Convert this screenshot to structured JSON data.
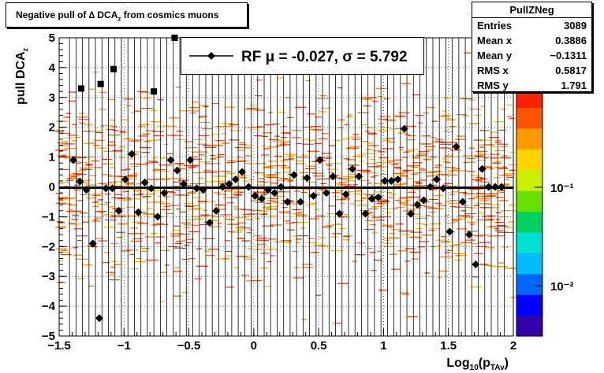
{
  "title": {
    "main": "Negative pull of ",
    "symbol": "∆",
    "rest1": " DCA",
    "sub": "z",
    "rest2": " from cosmics muons"
  },
  "stats": {
    "name": "PullZNeg",
    "rows": [
      {
        "label": "Entries",
        "value": "3089"
      },
      {
        "label": "Mean x",
        "value": "0.3886"
      },
      {
        "label": "Mean y",
        "value": "−0.1311"
      },
      {
        "label": "RMS x",
        "value": "0.5817"
      },
      {
        "label": "RMS y",
        "value": "1.791"
      }
    ]
  },
  "legend": {
    "text": "RF μ = -0.027, σ =   5.792"
  },
  "axes": {
    "xlabel": "Log",
    "xlabel_sub": "10",
    "xlabel_rest": "(p",
    "xlabel_sub2": "TAv",
    "xlabel_end": ")",
    "ylabel": "pull DCA",
    "ylabel_sub": "z",
    "xticks": [
      "−1.5",
      "−1",
      "−0.5",
      "0",
      "0.5",
      "1",
      "1.5",
      "2"
    ],
    "yticks": [
      "−5",
      "−4",
      "−3",
      "−2",
      "−1",
      "0",
      "1",
      "2",
      "3",
      "4",
      "5"
    ],
    "zticks": [
      "10⁻¹",
      "10⁻²"
    ]
  },
  "chart_data": {
    "type": "scatter",
    "xlim": [
      -1.5,
      2
    ],
    "ylim": [
      -5,
      5
    ],
    "zscale": "log",
    "grid": true,
    "fit_line_y": -0.027,
    "overflow_points": [
      {
        "x": -1.33,
        "y": 3.3
      },
      {
        "x": -1.18,
        "y": 3.45
      },
      {
        "x": -1.08,
        "y": 3.95
      },
      {
        "x": -0.77,
        "y": 3.2
      },
      {
        "x": -0.61,
        "y": 5.0
      }
    ],
    "series": [
      {
        "x": [
          -1.39,
          -1.34,
          -1.29,
          -1.24,
          -1.19,
          -1.14,
          -1.09,
          -1.04,
          -0.99,
          -0.94,
          -0.89,
          -0.84,
          -0.79,
          -0.74,
          -0.69,
          -0.64,
          -0.59,
          -0.54,
          -0.49,
          -0.44,
          -0.39,
          -0.34,
          -0.29,
          -0.24,
          -0.19,
          -0.14,
          -0.09,
          -0.04,
          0.01,
          0.06,
          0.11,
          0.16,
          0.21,
          0.26,
          0.31,
          0.36,
          0.41,
          0.46,
          0.51,
          0.56,
          0.61,
          0.66,
          0.71,
          0.76,
          0.81,
          0.86,
          0.91,
          0.96,
          1.01,
          1.06,
          1.11,
          1.16,
          1.21,
          1.26,
          1.31,
          1.36,
          1.41,
          1.46,
          1.51,
          1.56,
          1.61,
          1.66,
          1.71,
          1.76,
          1.81,
          1.86,
          1.91
        ],
        "y": [
          0.9,
          0.18,
          -0.1,
          -1.9,
          -4.4,
          -0.05,
          -0.05,
          -0.8,
          0.25,
          1.1,
          -0.85,
          0.15,
          -0.05,
          -1.0,
          -0.2,
          0.9,
          0.55,
          0.1,
          0.9,
          -0.05,
          -0.1,
          -1.2,
          -0.8,
          0.0,
          0.1,
          0.25,
          0.5,
          0.0,
          -0.3,
          -0.4,
          -0.1,
          -0.2,
          0.0,
          -0.5,
          0.4,
          -0.5,
          0.3,
          -0.3,
          0.9,
          -0.2,
          0.35,
          -0.9,
          -0.25,
          0.6,
          0.35,
          -0.9,
          -0.4,
          -0.35,
          0.2,
          0.2,
          0.25,
          1.95,
          -0.9,
          -0.6,
          -0.45,
          0.0,
          0.25,
          -0.05,
          -1.5,
          1.35,
          -0.5,
          -1.6,
          -2.6,
          0.6,
          0.0,
          0.0,
          0.0
        ]
      }
    ]
  }
}
